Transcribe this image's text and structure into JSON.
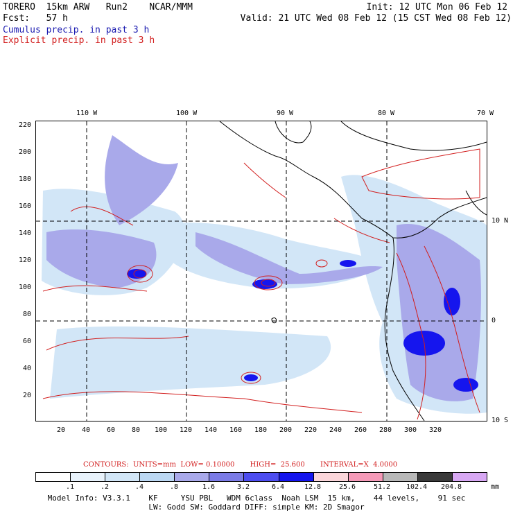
{
  "header": {
    "model": "TORERO  15km ARW   Run2    NCAR/MMM",
    "init": "Init: 12 UTC Mon 06 Feb 12",
    "fcst": "Fcst:   57 h",
    "valid": "Valid: 21 UTC Wed 08 Feb 12 (15 CST Wed 08 Feb 12)",
    "cumulus": "Cumulus precip. in past 3 h",
    "explicit": "Explicit precip. in past 3 h"
  },
  "axes": {
    "top_lon": [
      "110 W",
      "100 W",
      "90 W",
      "80 W",
      "70 W"
    ],
    "right_lat": [
      "10 N",
      "0",
      "10 S"
    ],
    "left_y": [
      "220",
      "200",
      "180",
      "160",
      "140",
      "120",
      "100",
      "80",
      "60",
      "40",
      "20"
    ],
    "bottom_x": [
      "20",
      "40",
      "60",
      "80",
      "100",
      "120",
      "140",
      "160",
      "180",
      "200",
      "220",
      "240",
      "260",
      "280",
      "300",
      "320"
    ]
  },
  "contours": {
    "text": "CONTOURS:  UNITS=mm  LOW= 0.10000       HIGH=  25.600       INTERVAL=X  4.0000"
  },
  "legend": {
    "ticks": [
      ".1",
      ".2",
      ".4",
      ".8",
      "1.6",
      "3.2",
      "6.4",
      "12.8",
      "25.6",
      "51.2",
      "102.4",
      "204.8"
    ],
    "unit": "mm",
    "colors": [
      "#ffffff",
      "#e8f2fb",
      "#d2e6f7",
      "#bcd8f3",
      "#a9a9ea",
      "#7b7be6",
      "#4d4df0",
      "#1515ee",
      "#fbd6da",
      "#f59ab8",
      "#b8b8b8",
      "#3a3a3a",
      "#d8a8f4"
    ]
  },
  "footer": {
    "line1": "Model Info: V3.3.1    KF     YSU PBL   WDM 6class  Noah LSM  15 km,    44 levels,    91 sec",
    "line2": "LW: Godd SW: Goddard DIFF: simple KM: 2D Smagor"
  },
  "colors": {
    "cumulus": "#1a1ab0",
    "explicit": "#d21e1e",
    "coast": "#000000"
  }
}
